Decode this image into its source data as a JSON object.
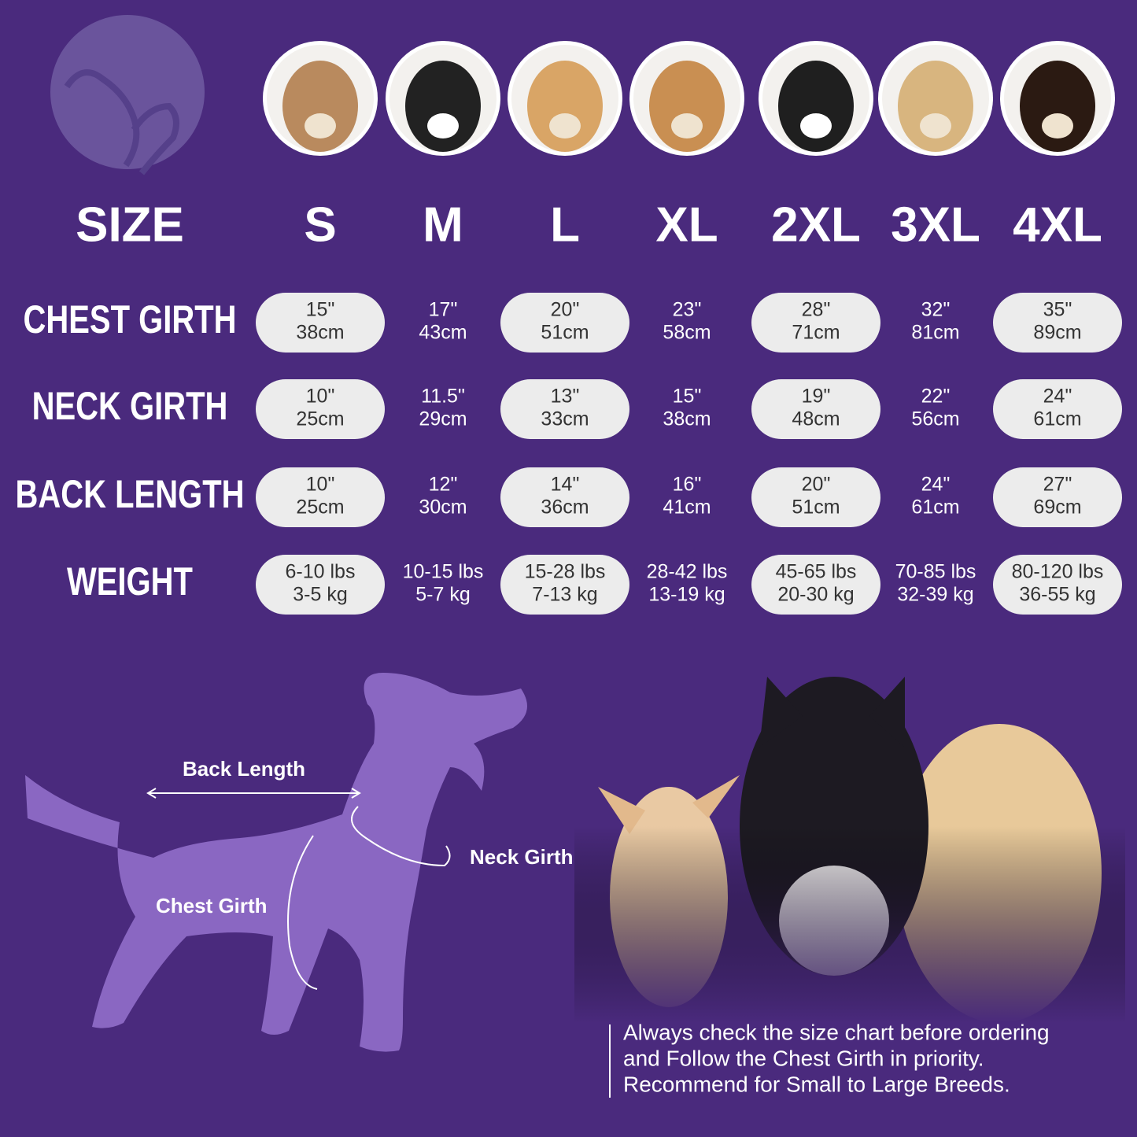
{
  "size_label": "SIZE",
  "sizes": [
    "S",
    "M",
    "L",
    "XL",
    "2XL",
    "3XL",
    "4XL"
  ],
  "rows": [
    {
      "label": "CHEST GIRTH",
      "cells": [
        [
          "15\"",
          "38cm"
        ],
        [
          "17\"",
          "43cm"
        ],
        [
          "20\"",
          "51cm"
        ],
        [
          "23\"",
          "58cm"
        ],
        [
          "28\"",
          "71cm"
        ],
        [
          "32\"",
          "81cm"
        ],
        [
          "35\"",
          "89cm"
        ]
      ]
    },
    {
      "label": "NECK GIRTH",
      "cells": [
        [
          "10\"",
          "25cm"
        ],
        [
          "11.5\"",
          "29cm"
        ],
        [
          "13\"",
          "33cm"
        ],
        [
          "15\"",
          "38cm"
        ],
        [
          "19\"",
          "48cm"
        ],
        [
          "22\"",
          "56cm"
        ],
        [
          "24\"",
          "61cm"
        ]
      ]
    },
    {
      "label": "BACK LENGTH",
      "cells": [
        [
          "10\"",
          "25cm"
        ],
        [
          "12\"",
          "30cm"
        ],
        [
          "14\"",
          "36cm"
        ],
        [
          "16\"",
          "41cm"
        ],
        [
          "20\"",
          "51cm"
        ],
        [
          "24\"",
          "61cm"
        ],
        [
          "27\"",
          "69cm"
        ]
      ]
    },
    {
      "label": "WEIGHT",
      "cells": [
        [
          "6-10 lbs",
          "3-5 kg"
        ],
        [
          "10-15 lbs",
          "5-7 kg"
        ],
        [
          "15-28 lbs",
          "7-13 kg"
        ],
        [
          "28-42 lbs",
          "13-19 kg"
        ],
        [
          "45-65 lbs",
          "20-30 kg"
        ],
        [
          "70-85 lbs",
          "32-39 kg"
        ],
        [
          "80-120 lbs",
          "36-55 kg"
        ]
      ]
    }
  ],
  "diagram": {
    "back_length": "Back Length",
    "neck_girth": "Neck Girth",
    "chest_girth": "Chest Girth"
  },
  "note": [
    "Always check the size chart before ordering",
    "and Follow the Chest Girth in priority.",
    "Recommend for Small to Large Breeds."
  ]
}
